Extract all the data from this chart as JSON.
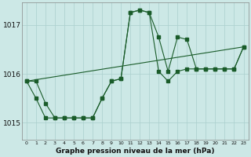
{
  "title": "Graphe pression niveau de la mer (hPa)",
  "background_color": "#cce8e6",
  "grid_color": "#aacfcd",
  "line_color": "#1a5c2a",
  "yticks": [
    1015,
    1016,
    1017
  ],
  "ylim": [
    1014.65,
    1017.45
  ],
  "xlim": [
    -0.5,
    23.5
  ],
  "x_labels": [
    "0",
    "1",
    "2",
    "3",
    "4",
    "5",
    "6",
    "7",
    "8",
    "9",
    "10",
    "11",
    "12",
    "13",
    "14",
    "15",
    "16",
    "17",
    "18",
    "19",
    "20",
    "21",
    "22",
    "23"
  ],
  "line1_x": [
    0,
    1,
    2,
    3,
    4,
    5,
    6,
    7,
    8,
    9,
    10,
    11,
    12,
    13,
    14,
    15,
    16,
    17,
    18,
    19,
    20,
    21,
    22,
    23
  ],
  "line1_y": [
    1015.85,
    1015.85,
    1015.4,
    1015.1,
    1015.1,
    1015.1,
    1015.1,
    1015.1,
    1015.5,
    1015.85,
    1015.9,
    1017.25,
    1017.3,
    1017.25,
    1016.75,
    1016.05,
    1016.75,
    1016.7,
    1016.1,
    1016.1,
    1016.1,
    1016.1,
    1016.1,
    1016.55
  ],
  "line2_x": [
    0,
    1,
    2,
    3,
    4,
    5,
    6,
    7,
    8,
    9,
    10,
    11,
    12,
    13,
    14,
    15,
    16,
    17,
    18,
    19,
    20,
    21,
    22,
    23
  ],
  "line2_y": [
    1015.85,
    1015.5,
    1015.1,
    1015.1,
    1015.1,
    1015.1,
    1015.1,
    1015.1,
    1015.5,
    1015.85,
    1015.9,
    1017.25,
    1017.3,
    1017.25,
    1016.05,
    1015.85,
    1016.05,
    1016.1,
    1016.1,
    1016.1,
    1016.1,
    1016.1,
    1016.1,
    1016.55
  ],
  "line3_x": [
    0,
    23
  ],
  "line3_y": [
    1015.85,
    1016.55
  ]
}
